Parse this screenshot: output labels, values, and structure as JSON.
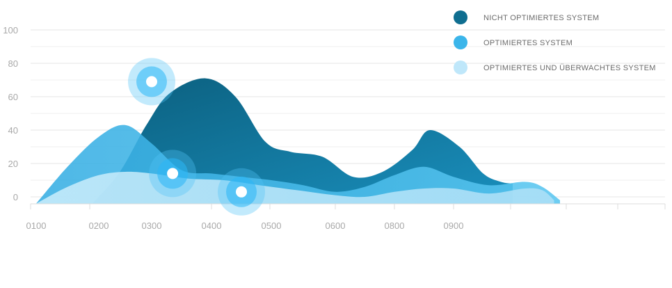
{
  "chart_data": {
    "type": "area",
    "title": "",
    "xlabel": "",
    "ylabel": "",
    "ylim": [
      0,
      100
    ],
    "yticks": [
      0,
      20,
      40,
      60,
      80,
      100
    ],
    "categories": [
      "0100",
      "0200",
      "0300",
      "0400",
      "0500",
      "0600",
      "0800",
      "0900"
    ],
    "grid": true,
    "legend_position": "top-right",
    "series": [
      {
        "name": "NICHT OPTIMIERTES SYSTEM",
        "color": "#0f6e90",
        "points": [
          [
            0.9,
            -4
          ],
          [
            1.4,
            15
          ],
          [
            1.9,
            43
          ],
          [
            2.3,
            62
          ],
          [
            2.9,
            71
          ],
          [
            3.4,
            60
          ],
          [
            3.9,
            33
          ],
          [
            4.3,
            27
          ],
          [
            4.8,
            24
          ],
          [
            5.3,
            12
          ],
          [
            5.8,
            15
          ],
          [
            6.3,
            28
          ],
          [
            6.6,
            40
          ],
          [
            7.1,
            30
          ],
          [
            7.5,
            14
          ],
          [
            7.8,
            9
          ],
          [
            8.0,
            8
          ]
        ]
      },
      {
        "name": "OPTIMIERTES SYSTEM",
        "color": "#3bb5ea",
        "points": [
          [
            0,
            -4
          ],
          [
            0.5,
            18
          ],
          [
            1.0,
            36
          ],
          [
            1.5,
            43
          ],
          [
            2.0,
            32
          ],
          [
            2.5,
            16
          ],
          [
            3.0,
            14
          ],
          [
            3.5,
            12
          ],
          [
            4.0,
            10
          ],
          [
            4.5,
            7
          ],
          [
            5.0,
            3
          ],
          [
            5.5,
            6
          ],
          [
            6.0,
            13
          ],
          [
            6.5,
            18
          ],
          [
            7.0,
            12
          ],
          [
            7.6,
            7
          ],
          [
            8.2,
            9
          ],
          [
            8.5,
            6
          ],
          [
            8.8,
            -2
          ]
        ]
      },
      {
        "name": "OPTIMIERTES UND ÜBERWACHTES SYSTEM",
        "color": "#bfe7fa",
        "points": [
          [
            0,
            -4
          ],
          [
            0.5,
            6
          ],
          [
            1.0,
            13
          ],
          [
            1.5,
            15
          ],
          [
            2.0,
            14
          ],
          [
            2.6,
            11
          ],
          [
            3.2,
            10
          ],
          [
            3.8,
            7
          ],
          [
            4.4,
            4
          ],
          [
            5.0,
            1
          ],
          [
            5.5,
            0
          ],
          [
            6.0,
            3
          ],
          [
            6.5,
            5
          ],
          [
            7.0,
            5
          ],
          [
            7.6,
            2
          ],
          [
            8.2,
            5
          ],
          [
            8.5,
            4
          ],
          [
            8.7,
            -2
          ]
        ]
      }
    ],
    "markers": [
      {
        "x": 2.0,
        "y": 69
      },
      {
        "x": 2.35,
        "y": 14
      },
      {
        "x": 3.5,
        "y": 3
      }
    ]
  }
}
